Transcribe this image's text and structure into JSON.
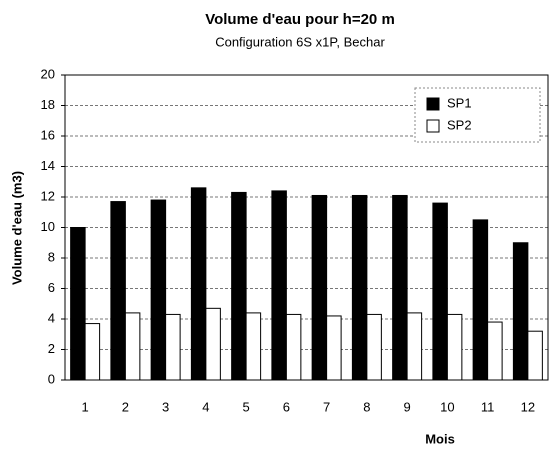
{
  "chart_data": {
    "type": "bar",
    "title": "Volume d'eau  pour h=20 m",
    "subtitle": "Configuration 6S x1P, Bechar",
    "x_label": "Mois",
    "y_label": "Volume d'eau (m3)",
    "categories": [
      "1",
      "2",
      "3",
      "4",
      "5",
      "6",
      "7",
      "8",
      "9",
      "10",
      "11",
      "12"
    ],
    "series": [
      {
        "name": "SP1",
        "color": "#000000",
        "values": [
          10,
          11.7,
          11.8,
          12.6,
          12.3,
          12.4,
          12.1,
          12.1,
          12.1,
          11.6,
          10.5,
          9.0
        ]
      },
      {
        "name": "SP2",
        "color": "#ffffff",
        "values": [
          3.7,
          4.4,
          4.3,
          4.7,
          4.4,
          4.3,
          4.2,
          4.3,
          4.4,
          4.3,
          3.8,
          3.2
        ]
      }
    ],
    "ylim": [
      0,
      20
    ],
    "yticks": [
      0,
      2,
      4,
      6,
      8,
      10,
      12,
      14,
      16,
      18,
      20
    ],
    "grid": true,
    "legend": "upper-right"
  }
}
